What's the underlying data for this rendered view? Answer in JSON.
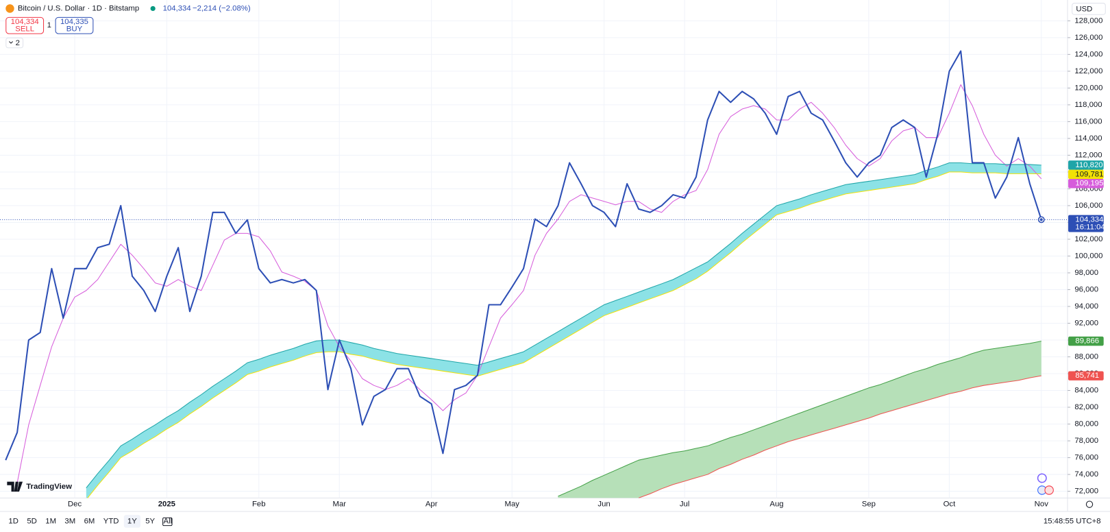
{
  "header": {
    "symbol": "Bitcoin / U.S. Dollar · 1D · Bitstamp",
    "price": "104,334",
    "change": "−2,214 (−2.08%)",
    "sell_price": "104,334",
    "sell": "SELL",
    "quantity": "1",
    "buy_price": "104,335",
    "buy": "BUY",
    "indicators": "2",
    "currency": "USD"
  },
  "logo": "TradingView",
  "countdown": "16:11:04",
  "toolbar": {
    "ranges": [
      "1D",
      "5D",
      "1M",
      "3M",
      "6M",
      "YTD",
      "1Y",
      "5Y",
      "All"
    ],
    "active": "1Y",
    "clock": "15:48:55 UTC+8"
  },
  "chart_data": {
    "type": "line",
    "categories": [
      null,
      null,
      null,
      null,
      null,
      null,
      "Dec",
      null,
      null,
      null,
      null,
      null,
      null,
      null,
      "2025",
      null,
      null,
      null,
      null,
      null,
      null,
      null,
      "Feb",
      null,
      null,
      null,
      null,
      null,
      null,
      "Mar",
      null,
      null,
      null,
      null,
      null,
      null,
      null,
      "Apr",
      null,
      null,
      null,
      null,
      null,
      null,
      "May",
      null,
      null,
      null,
      null,
      null,
      null,
      null,
      "Jun",
      null,
      null,
      null,
      null,
      null,
      null,
      "Jul",
      null,
      null,
      null,
      null,
      null,
      null,
      null,
      "Aug",
      null,
      null,
      null,
      null,
      null,
      null,
      null,
      "Sep",
      null,
      null,
      null,
      null,
      null,
      null,
      "Oct",
      null,
      null,
      null,
      null,
      null,
      null,
      null,
      "Nov"
    ],
    "ylim": [
      71200,
      129800
    ],
    "yticks": [
      {
        "value": 72000,
        "label": "72,000"
      },
      {
        "value": 74000,
        "label": "74,000"
      },
      {
        "value": 76000,
        "label": "76,000"
      },
      {
        "value": 78000,
        "label": "78,000"
      },
      {
        "value": 80000,
        "label": "80,000"
      },
      {
        "value": 82000,
        "label": "82,000"
      },
      {
        "value": 84000,
        "label": "84,000"
      },
      {
        "value": 86000,
        "label": "86,000"
      },
      {
        "value": 88000,
        "label": "88,000"
      },
      {
        "value": 90000,
        "label": "90,000"
      },
      {
        "value": 92000,
        "label": "92,000"
      },
      {
        "value": 94000,
        "label": "94,000"
      },
      {
        "value": 96000,
        "label": "96,000"
      },
      {
        "value": 98000,
        "label": "98,000"
      },
      {
        "value": 100000,
        "label": "100,000"
      },
      {
        "value": 102000,
        "label": "102,000"
      },
      {
        "value": 104000,
        "label": "104,000"
      },
      {
        "value": 106000,
        "label": "106,000"
      },
      {
        "value": 108000,
        "label": "108,000"
      },
      {
        "value": 110000,
        "label": "110,000"
      },
      {
        "value": 112000,
        "label": "112,000"
      },
      {
        "value": 114000,
        "label": "114,000"
      },
      {
        "value": 116000,
        "label": "116,000"
      },
      {
        "value": 118000,
        "label": "118,000"
      },
      {
        "value": 120000,
        "label": "120,000"
      },
      {
        "value": 122000,
        "label": "122,000"
      },
      {
        "value": 124000,
        "label": "124,000"
      },
      {
        "value": 126000,
        "label": "126,000"
      },
      {
        "value": 128000,
        "label": "128,000"
      }
    ],
    "grid": true,
    "bands": [
      {
        "series": [
          2,
          3
        ],
        "color": "#8ce2e6"
      },
      {
        "series": [
          4,
          5
        ],
        "color": "#b6e0b8"
      }
    ],
    "series": [
      {
        "color": "#2d4fb5",
        "width": 2,
        "last_label": "104,334",
        "values": [
          75700,
          79000,
          90000,
          90900,
          98500,
          92600,
          98500,
          98500,
          101000,
          101400,
          106000,
          97600,
          95900,
          93400,
          97600,
          101000,
          93400,
          97600,
          105200,
          105200,
          102700,
          104300,
          98500,
          96800,
          97200,
          96800,
          97200,
          95900,
          84100,
          90000,
          86600,
          79900,
          83300,
          84100,
          86600,
          86600,
          83300,
          82400,
          76500,
          84100,
          84600,
          85800,
          94200,
          94200,
          96300,
          98500,
          104400,
          103500,
          106000,
          111100,
          108600,
          106000,
          105200,
          103500,
          108600,
          105600,
          105200,
          106000,
          107300,
          106900,
          109400,
          116200,
          119600,
          118300,
          119600,
          118700,
          117000,
          114500,
          119000,
          119600,
          117000,
          116200,
          113700,
          111100,
          109400,
          111100,
          112000,
          115300,
          116200,
          115300,
          109400,
          114500,
          122000,
          124400,
          111100,
          111100,
          106900,
          109400,
          114100,
          108600,
          104334
        ]
      },
      {
        "color": "#d65cdb",
        "width": 1,
        "last_label": "109,195",
        "values": [
          null,
          73000,
          79900,
          84600,
          89200,
          92600,
          95100,
          95900,
          97200,
          99300,
          101400,
          100100,
          98500,
          96800,
          96400,
          97200,
          96400,
          95900,
          98900,
          101900,
          102700,
          102700,
          102300,
          100600,
          98100,
          97600,
          97000,
          95900,
          91700,
          89200,
          87500,
          85400,
          84600,
          84100,
          84600,
          85400,
          84100,
          82900,
          81600,
          82900,
          83700,
          85800,
          89200,
          92600,
          94200,
          95900,
          100100,
          102700,
          104400,
          106500,
          107300,
          106900,
          106500,
          106100,
          106500,
          106500,
          105600,
          105200,
          106500,
          107300,
          107800,
          110300,
          114500,
          116600,
          117500,
          117900,
          117500,
          116200,
          116200,
          117500,
          118300,
          117000,
          115300,
          113200,
          111600,
          110700,
          111600,
          113700,
          114900,
          115300,
          114100,
          114100,
          117000,
          120400,
          117900,
          114500,
          112000,
          110700,
          111600,
          110700,
          109195
        ]
      },
      {
        "color": "#1fa5a8",
        "width": 1,
        "last_label": "110,820",
        "values": [
          null,
          null,
          null,
          null,
          null,
          null,
          null,
          72400,
          74100,
          75700,
          77400,
          78200,
          79100,
          79900,
          80800,
          81600,
          82600,
          83500,
          84500,
          85400,
          86300,
          87300,
          87700,
          88200,
          88600,
          89000,
          89500,
          89900,
          90000,
          90000,
          89700,
          89400,
          89000,
          88700,
          88400,
          88200,
          88000,
          87800,
          87600,
          87400,
          87200,
          87000,
          87400,
          87800,
          88200,
          88600,
          89400,
          90200,
          91000,
          91800,
          92600,
          93400,
          94200,
          94700,
          95200,
          95700,
          96200,
          96700,
          97200,
          97900,
          98600,
          99300,
          100400,
          101500,
          102700,
          103800,
          104900,
          106000,
          106400,
          106800,
          107300,
          107700,
          108100,
          108500,
          108700,
          108900,
          109100,
          109300,
          109500,
          109700,
          110200,
          110600,
          111100,
          111100,
          111000,
          111000,
          111000,
          110900,
          110900,
          110900,
          110820
        ]
      },
      {
        "color": "#f2e205",
        "width": 1,
        "last_label": "109,781",
        "values": [
          null,
          null,
          null,
          null,
          null,
          null,
          null,
          71000,
          72700,
          74300,
          76000,
          76800,
          77700,
          78500,
          79400,
          80200,
          81200,
          82100,
          83100,
          84000,
          84900,
          85900,
          86300,
          86800,
          87200,
          87600,
          88100,
          88500,
          88600,
          88600,
          88300,
          88100,
          87700,
          87400,
          87100,
          86900,
          86700,
          86500,
          86300,
          86100,
          85900,
          85700,
          86100,
          86500,
          86900,
          87300,
          88100,
          88900,
          89700,
          90500,
          91300,
          92100,
          92900,
          93400,
          93900,
          94400,
          94900,
          95400,
          95900,
          96600,
          97300,
          98200,
          99300,
          100400,
          101600,
          102700,
          103800,
          104900,
          105300,
          105700,
          106200,
          106600,
          107000,
          107400,
          107600,
          107800,
          108000,
          108200,
          108400,
          108600,
          109100,
          109500,
          110000,
          110000,
          109900,
          109900,
          109900,
          109800,
          109800,
          109800,
          109781
        ]
      },
      {
        "color": "#43a047",
        "width": 1,
        "last_label": "89,866",
        "values": [
          null,
          null,
          null,
          null,
          null,
          null,
          null,
          null,
          null,
          null,
          null,
          null,
          null,
          null,
          null,
          null,
          null,
          null,
          null,
          null,
          null,
          null,
          null,
          null,
          null,
          null,
          null,
          null,
          null,
          null,
          null,
          null,
          null,
          null,
          null,
          null,
          null,
          null,
          null,
          null,
          null,
          null,
          null,
          null,
          null,
          null,
          null,
          null,
          71400,
          72000,
          72600,
          73300,
          73900,
          74500,
          75100,
          75700,
          76000,
          76300,
          76600,
          76800,
          77100,
          77400,
          77900,
          78400,
          78800,
          79300,
          79800,
          80300,
          80800,
          81300,
          81800,
          82300,
          82800,
          83300,
          83800,
          84300,
          84700,
          85200,
          85700,
          86200,
          86600,
          87100,
          87500,
          87900,
          88400,
          88800,
          89000,
          89200,
          89400,
          89600,
          89866
        ]
      },
      {
        "color": "#ef5350",
        "width": 1,
        "last_label": "85,741",
        "values": [
          null,
          null,
          null,
          null,
          null,
          null,
          null,
          null,
          null,
          null,
          null,
          null,
          null,
          null,
          null,
          null,
          null,
          null,
          null,
          null,
          null,
          null,
          null,
          null,
          null,
          null,
          null,
          null,
          null,
          null,
          null,
          null,
          null,
          null,
          null,
          null,
          null,
          null,
          null,
          null,
          null,
          null,
          null,
          null,
          null,
          null,
          null,
          null,
          null,
          null,
          null,
          null,
          null,
          null,
          null,
          71200,
          71700,
          72300,
          72800,
          73200,
          73600,
          74000,
          74700,
          75200,
          75800,
          76300,
          76900,
          77400,
          77900,
          78300,
          78700,
          79100,
          79500,
          79900,
          80300,
          80700,
          81200,
          81600,
          82000,
          82400,
          82800,
          83200,
          83600,
          83900,
          84300,
          84600,
          84800,
          85000,
          85200,
          85500,
          85741
        ]
      }
    ]
  }
}
